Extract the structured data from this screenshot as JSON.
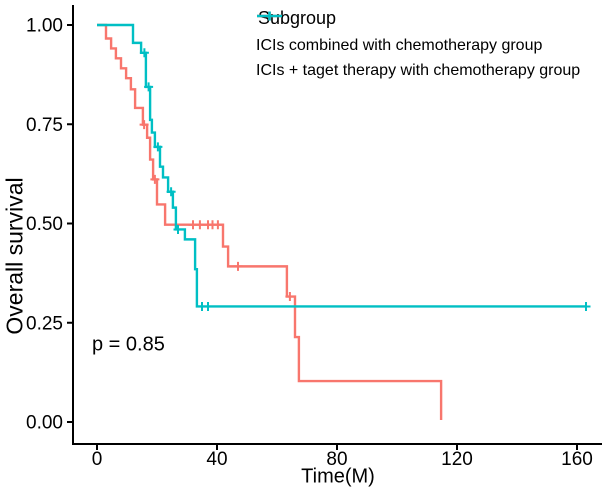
{
  "chart_data": {
    "type": "line",
    "subtype": "kaplan-meier-step-curves",
    "title": "",
    "xlabel": "Time(M)",
    "ylabel": "Overall survival",
    "xlim": [
      0,
      165
    ],
    "ylim": [
      0,
      1
    ],
    "grid": false,
    "x_ticks": [
      {
        "v": 0,
        "label": "0"
      },
      {
        "v": 40,
        "label": "40"
      },
      {
        "v": 80,
        "label": "80"
      },
      {
        "v": 120,
        "label": "120"
      },
      {
        "v": 160,
        "label": "160"
      }
    ],
    "y_ticks": [
      {
        "v": 0.0,
        "label": "0.00"
      },
      {
        "v": 0.25,
        "label": "0.25"
      },
      {
        "v": 0.5,
        "label": "0.50"
      },
      {
        "v": 0.75,
        "label": "0.75"
      },
      {
        "v": 1.0,
        "label": "1.00"
      }
    ],
    "legend_title": "Subgroup",
    "legend_position": "top-right",
    "annotations": [
      {
        "text": "p = 0.85",
        "t": 1.5,
        "s": 0.19
      }
    ],
    "series": [
      {
        "name": "ICIs combined with chemotherapy group",
        "color": "#F8766D",
        "points": [
          [
            0,
            1.0
          ],
          [
            3,
            0.966
          ],
          [
            4.7,
            0.941
          ],
          [
            6.3,
            0.916
          ],
          [
            8,
            0.891
          ],
          [
            9.7,
            0.866
          ],
          [
            11.3,
            0.838
          ],
          [
            12.7,
            0.791
          ],
          [
            15.3,
            0.749
          ],
          [
            16.7,
            0.716
          ],
          [
            17.7,
            0.661
          ],
          [
            18.7,
            0.611
          ],
          [
            20,
            0.548
          ],
          [
            22.7,
            0.497
          ],
          [
            42,
            0.442
          ],
          [
            43.7,
            0.392
          ],
          [
            63.3,
            0.316
          ],
          [
            66,
            0.214
          ],
          [
            67.3,
            0.103
          ],
          [
            114.7,
            0.005
          ]
        ],
        "censors": [
          [
            15.7,
            0.749
          ],
          [
            19.3,
            0.611
          ],
          [
            32,
            0.497
          ],
          [
            34.3,
            0.497
          ],
          [
            37,
            0.497
          ],
          [
            38.5,
            0.497
          ],
          [
            40.3,
            0.497
          ],
          [
            47,
            0.392
          ],
          [
            64.3,
            0.316
          ]
        ],
        "end_t": null
      },
      {
        "name": "ICIs + taget therapy with chemotherapy group",
        "color": "#00BFC4",
        "points": [
          [
            0,
            1.0
          ],
          [
            12,
            0.955
          ],
          [
            14.7,
            0.93
          ],
          [
            16.3,
            0.844
          ],
          [
            17.7,
            0.761
          ],
          [
            18.3,
            0.729
          ],
          [
            19.3,
            0.693
          ],
          [
            21,
            0.643
          ],
          [
            22,
            0.616
          ],
          [
            23.7,
            0.58
          ],
          [
            25.3,
            0.54
          ],
          [
            26.3,
            0.485
          ],
          [
            29.3,
            0.46
          ],
          [
            32.7,
            0.385
          ],
          [
            33.3,
            0.291
          ]
        ],
        "censors": [
          [
            15.8,
            0.93
          ],
          [
            17.2,
            0.844
          ],
          [
            20.3,
            0.693
          ],
          [
            24.7,
            0.58
          ],
          [
            27,
            0.485
          ],
          [
            35,
            0.291
          ],
          [
            37,
            0.291
          ],
          [
            163,
            0.291
          ]
        ],
        "end_t": 163.3
      }
    ]
  }
}
